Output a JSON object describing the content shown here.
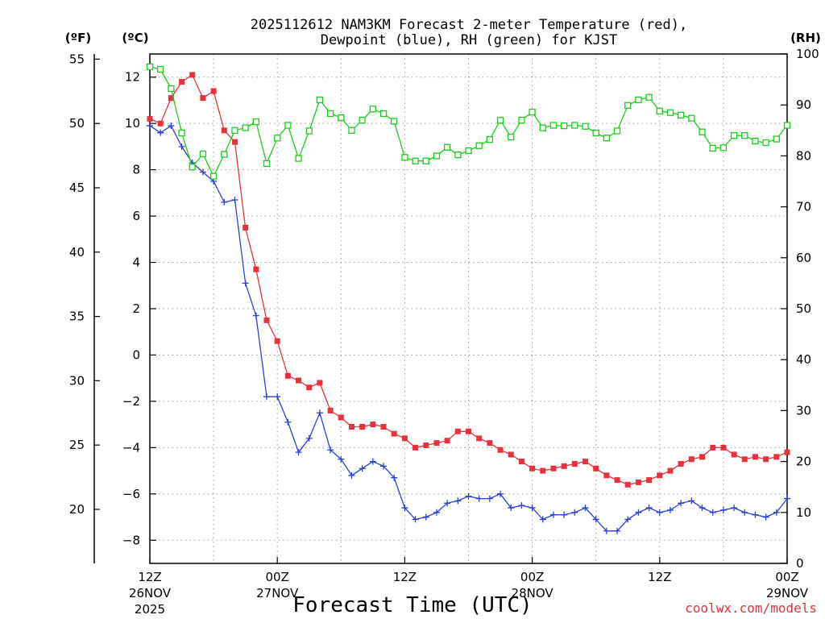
{
  "chart_data": {
    "type": "line",
    "title_line1": "2025112612 NAM3KM Forecast 2-meter Temperature (red),",
    "title_line2": "Dewpoint (blue), RH (green) for KJST",
    "xlabel": "Forecast Time (UTC)",
    "credit": "coolwx.com/models",
    "units": {
      "fahrenheit": "(ºF)",
      "celsius": "(ºC)",
      "rh": "(RH)"
    },
    "x_hours_range": [
      0,
      60
    ],
    "celsius_range": [
      -9.0,
      13.0
    ],
    "fahrenheit_range": [
      15.8,
      55.4
    ],
    "rh_range": [
      0,
      100
    ],
    "celsius_ticks": [
      "12",
      "10",
      "8",
      "6",
      "4",
      "2",
      "0",
      "-2",
      "-4",
      "-6",
      "-8"
    ],
    "fahrenheit_ticks": [
      "55",
      "50",
      "45",
      "40",
      "35",
      "30",
      "25",
      "20"
    ],
    "rh_ticks": [
      "100",
      "90",
      "80",
      "70",
      "60",
      "50",
      "40",
      "30",
      "20",
      "10",
      "0"
    ],
    "x_ticks": [
      {
        "hour": 0,
        "line1": "12Z",
        "line2": "26NOV",
        "line3": "2025"
      },
      {
        "hour": 12,
        "line1": "00Z",
        "line2": "27NOV",
        "line3": ""
      },
      {
        "hour": 24,
        "line1": "12Z",
        "line2": "",
        "line3": ""
      },
      {
        "hour": 36,
        "line1": "00Z",
        "line2": "28NOV",
        "line3": ""
      },
      {
        "hour": 48,
        "line1": "12Z",
        "line2": "",
        "line3": ""
      },
      {
        "hour": 60,
        "line1": "00Z",
        "line2": "29NOV",
        "line3": ""
      }
    ],
    "series": [
      {
        "name": "2-meter Temperature",
        "unit": "°C",
        "color": "#e8313b",
        "marker": "filled-square",
        "values": [
          10.2,
          10.0,
          11.1,
          11.8,
          12.1,
          11.1,
          11.4,
          9.7,
          9.2,
          5.5,
          3.7,
          1.5,
          0.6,
          -0.9,
          -1.1,
          -1.4,
          -1.2,
          -2.4,
          -2.7,
          -3.1,
          -3.1,
          -3.0,
          -3.1,
          -3.4,
          -3.6,
          -4.0,
          -3.9,
          -3.8,
          -3.7,
          -3.3,
          -3.3,
          -3.6,
          -3.8,
          -4.1,
          -4.3,
          -4.6,
          -4.9,
          -5.0,
          -4.9,
          -4.8,
          -4.7,
          -4.6,
          -4.9,
          -5.2,
          -5.4,
          -5.6,
          -5.5,
          -5.4,
          -5.2,
          -5.0,
          -4.7,
          -4.5,
          -4.4,
          -4.0,
          -4.0,
          -4.3,
          -4.5,
          -4.4,
          -4.5,
          -4.4,
          -4.2
        ]
      },
      {
        "name": "Dewpoint",
        "unit": "°C",
        "color": "#2a3fd8",
        "marker": "plus",
        "values": [
          9.9,
          9.6,
          9.9,
          9.0,
          8.3,
          7.9,
          7.5,
          6.6,
          6.7,
          3.1,
          1.7,
          -1.8,
          -1.8,
          -2.9,
          -4.2,
          -3.6,
          -2.5,
          -4.1,
          -4.5,
          -5.2,
          -4.9,
          -4.6,
          -4.8,
          -5.3,
          -6.6,
          -7.1,
          -7.0,
          -6.8,
          -6.4,
          -6.3,
          -6.1,
          -6.2,
          -6.2,
          -6.0,
          -6.6,
          -6.5,
          -6.6,
          -7.1,
          -6.9,
          -6.9,
          -6.8,
          -6.6,
          -7.1,
          -7.6,
          -7.6,
          -7.1,
          -6.8,
          -6.6,
          -6.8,
          -6.7,
          -6.4,
          -6.3,
          -6.6,
          -6.8,
          -6.7,
          -6.6,
          -6.8,
          -6.9,
          -7.0,
          -6.8,
          -6.2
        ]
      },
      {
        "name": "RH",
        "unit": "%",
        "color": "#19cf19",
        "marker": "open-square",
        "values": [
          97.5,
          97.0,
          93.2,
          84.5,
          77.8,
          80.4,
          76.0,
          80.3,
          85.0,
          85.5,
          86.7,
          78.5,
          83.5,
          86.0,
          79.5,
          84.9,
          91.0,
          88.3,
          87.5,
          85.0,
          87.0,
          89.2,
          88.3,
          86.8,
          79.7,
          79.0,
          79.0,
          80.0,
          81.7,
          80.2,
          81.0,
          82.0,
          83.2,
          87.0,
          83.7,
          87.0,
          88.6,
          85.5,
          86.0,
          85.9,
          86.0,
          85.8,
          84.5,
          83.5,
          84.9,
          89.9,
          91.0,
          91.5,
          88.8,
          88.5,
          88.0,
          87.4,
          84.7,
          81.5,
          81.6,
          84.0,
          84.0,
          82.9,
          82.6,
          83.3,
          86.0
        ]
      }
    ]
  }
}
